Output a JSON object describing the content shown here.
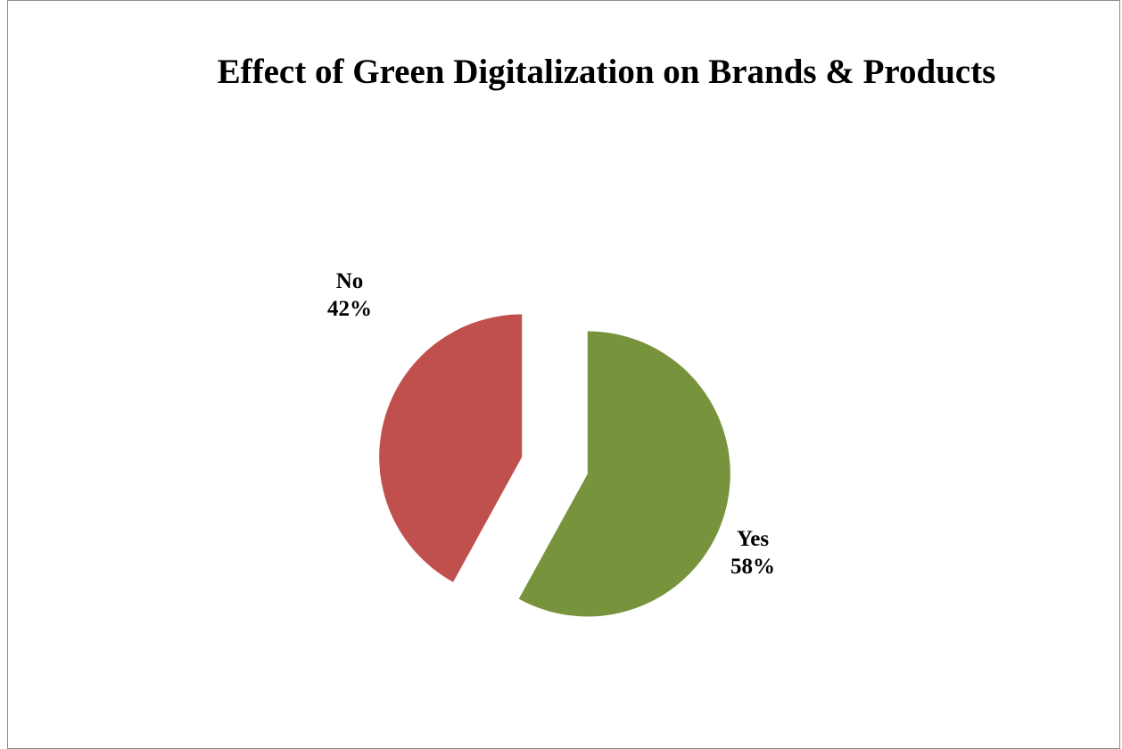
{
  "chart_data": {
    "type": "pie",
    "title": "Effect of Green Digitalization on Brands & Products",
    "slices": [
      {
        "label": "Yes",
        "value": 58,
        "value_label": "58%",
        "color": "#77933C",
        "exploded": true
      },
      {
        "label": "No",
        "value": 42,
        "value_label": "42%",
        "color": "#C0504D",
        "exploded": true
      }
    ],
    "start_angle": "12 o'clock",
    "direction": "clockwise",
    "legend": "none"
  }
}
